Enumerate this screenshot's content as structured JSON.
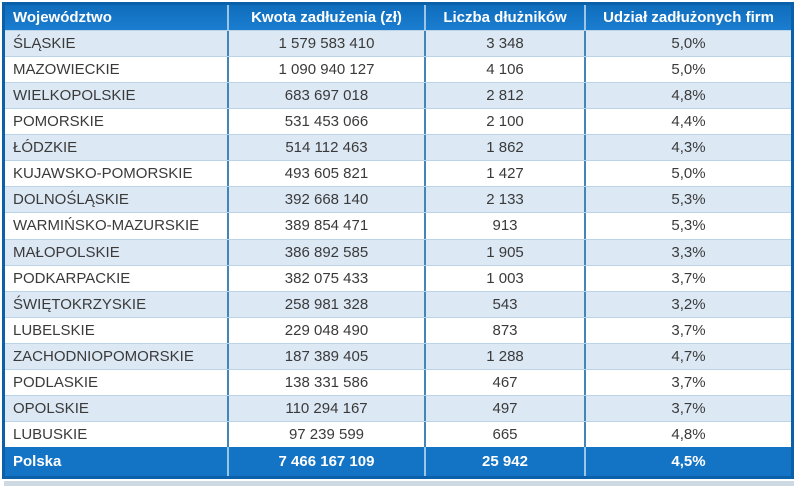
{
  "chart_data": {
    "type": "table",
    "columns": [
      "Województwo",
      "Kwota zadłużenia (zł)",
      "Liczba dłużników",
      "Udział zadłużonych firm"
    ],
    "rows": [
      {
        "region": "ŚLĄSKIE",
        "amount": "1 579 583 410",
        "debtors": "3 348",
        "share": "5,0%"
      },
      {
        "region": "MAZOWIECKIE",
        "amount": "1 090 940 127",
        "debtors": "4 106",
        "share": "5,0%"
      },
      {
        "region": "WIELKOPOLSKIE",
        "amount": "683 697 018",
        "debtors": "2 812",
        "share": "4,8%"
      },
      {
        "region": "POMORSKIE",
        "amount": "531 453 066",
        "debtors": "2 100",
        "share": "4,4%"
      },
      {
        "region": "ŁÓDZKIE",
        "amount": "514 112 463",
        "debtors": "1 862",
        "share": "4,3%"
      },
      {
        "region": "KUJAWSKO-POMORSKIE",
        "amount": "493 605 821",
        "debtors": "1 427",
        "share": "5,0%"
      },
      {
        "region": "DOLNOŚLĄSKIE",
        "amount": "392 668 140",
        "debtors": "2 133",
        "share": "5,3%"
      },
      {
        "region": "WARMIŃSKO-MAZURSKIE",
        "amount": "389 854 471",
        "debtors": "913",
        "share": "5,3%"
      },
      {
        "region": "MAŁOPOLSKIE",
        "amount": "386 892 585",
        "debtors": "1 905",
        "share": "3,3%"
      },
      {
        "region": "PODKARPACKIE",
        "amount": "382 075 433",
        "debtors": "1 003",
        "share": "3,7%"
      },
      {
        "region": "ŚWIĘTOKRZYSKIE",
        "amount": "258 981 328",
        "debtors": "543",
        "share": "3,2%"
      },
      {
        "region": "LUBELSKIE",
        "amount": "229 048 490",
        "debtors": "873",
        "share": "3,7%"
      },
      {
        "region": "ZACHODNIOPOMORSKIE",
        "amount": "187 389 405",
        "debtors": "1 288",
        "share": "4,7%"
      },
      {
        "region": "PODLASKIE",
        "amount": "138 331 586",
        "debtors": "467",
        "share": "3,7%"
      },
      {
        "region": "OPOLSKIE",
        "amount": "110 294 167",
        "debtors": "497",
        "share": "3,7%"
      },
      {
        "region": "LUBUSKIE",
        "amount": "97 239 599",
        "debtors": "665",
        "share": "4,8%"
      }
    ],
    "total": {
      "region": "Polska",
      "amount": "7 466 167 109",
      "debtors": "25 942",
      "share": "4,5%"
    }
  },
  "colors": {
    "header-blue": "#1373C5",
    "border-blue": "#0A61A9",
    "alt-row": "#DCE8F4",
    "col-sep": "#4285B8",
    "row-sep": "#BCD4E8",
    "body-text": "#3A3A3A"
  }
}
